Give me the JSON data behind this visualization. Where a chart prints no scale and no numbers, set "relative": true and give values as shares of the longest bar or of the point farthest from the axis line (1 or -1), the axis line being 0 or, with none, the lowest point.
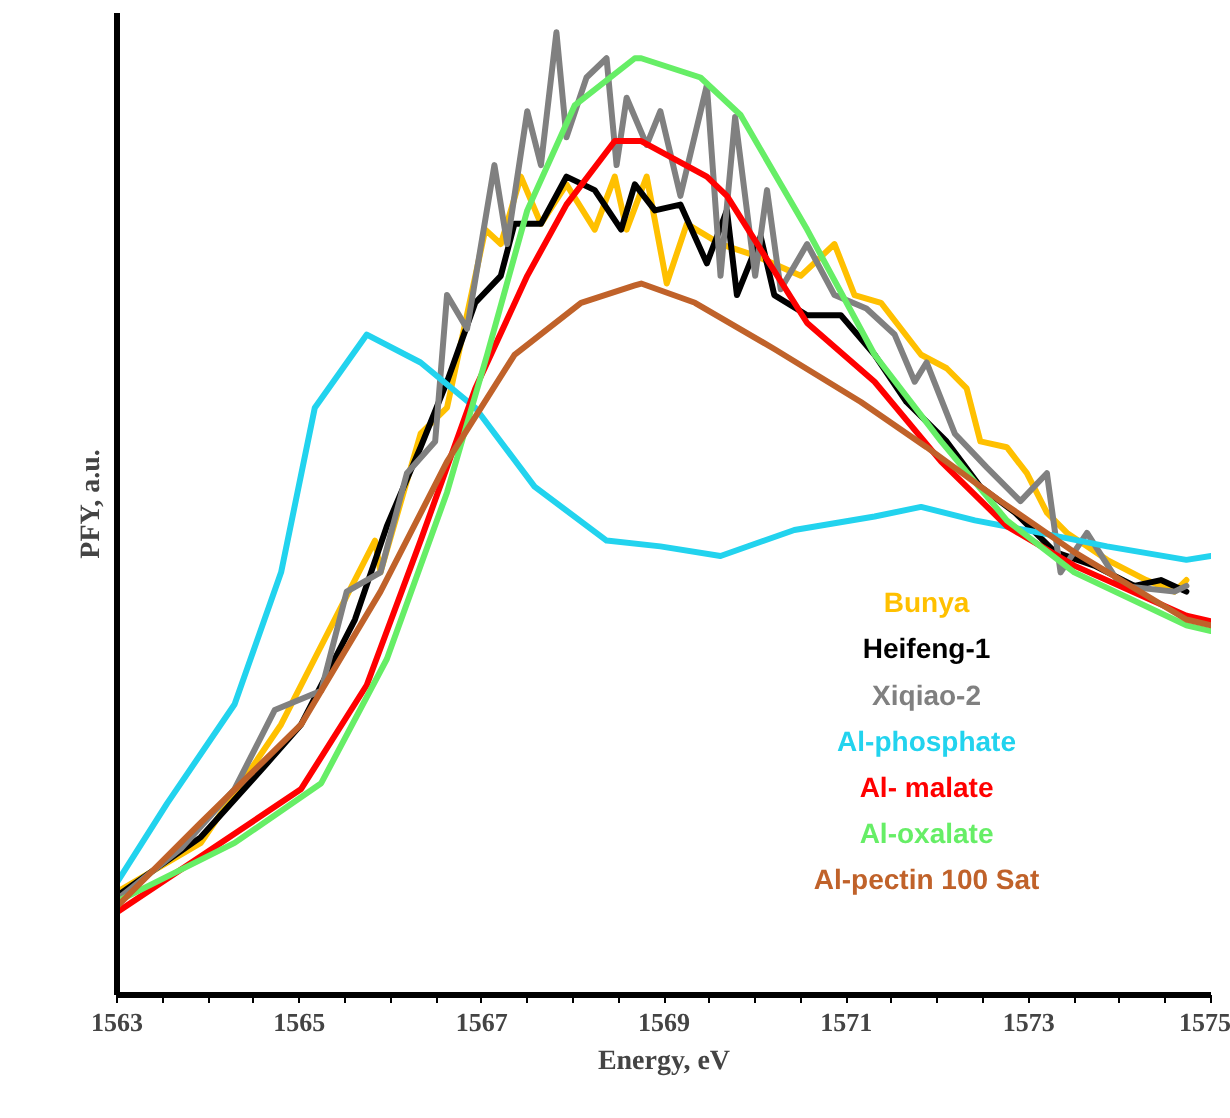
{
  "chart_data": {
    "type": "line",
    "relative": true,
    "xlabel": "Energy, eV",
    "ylabel": "PFY, a.u.",
    "xlim": [
      1563,
      1575
    ],
    "xticks": [
      1563,
      {
        "value": 1563.5,
        "label": null
      },
      {
        "value": 1564,
        "label": null
      },
      {
        "value": 1564.5,
        "label": null
      },
      1565,
      {
        "value": 1565.5,
        "label": null
      },
      {
        "value": 1566,
        "label": null
      },
      {
        "value": 1566.5,
        "label": null
      },
      1567,
      {
        "value": 1567.5,
        "label": null
      },
      {
        "value": 1568,
        "label": null
      },
      {
        "value": 1568.5,
        "label": null
      },
      1569,
      {
        "value": 1569.5,
        "label": null
      },
      {
        "value": 1570,
        "label": null
      },
      {
        "value": 1570.5,
        "label": null
      },
      1571,
      {
        "value": 1571.5,
        "label": null
      },
      {
        "value": 1572,
        "label": null
      },
      {
        "value": 1572.5,
        "label": null
      },
      1573,
      {
        "value": 1573.5,
        "label": null
      },
      {
        "value": 1574,
        "label": null
      },
      {
        "value": 1574.5,
        "label": null
      },
      1575
    ],
    "grid": false,
    "legend": "bottom right",
    "marker": "none",
    "line_style": "solid",
    "series": [
      {
        "name": "Bunya",
        "color": "#ffc000",
        "x": [
          1563,
          1563.92,
          1564.8,
          1565.83,
          1565.89,
          1566.33,
          1566.62,
          1567.04,
          1567.21,
          1567.43,
          1567.65,
          1567.93,
          1568.24,
          1568.46,
          1568.59,
          1568.81,
          1569.03,
          1569.25,
          1569.62,
          1570.0,
          1570.5,
          1570.87,
          1571.09,
          1571.38,
          1571.82,
          1572.1,
          1572.32,
          1572.47,
          1572.76,
          1572.98,
          1573.2,
          1573.42,
          1573.86,
          1574.29,
          1574.6,
          1574.73
        ],
        "values": [
          0.107,
          0.158,
          0.281,
          0.472,
          0.439,
          0.583,
          0.61,
          0.795,
          0.78,
          0.85,
          0.801,
          0.842,
          0.795,
          0.85,
          0.795,
          0.85,
          0.739,
          0.801,
          0.78,
          0.768,
          0.747,
          0.78,
          0.727,
          0.719,
          0.665,
          0.651,
          0.63,
          0.575,
          0.569,
          0.542,
          0.501,
          0.48,
          0.452,
          0.431,
          0.419,
          0.431
        ]
      },
      {
        "name": "Heifeng-1",
        "color": "#000000",
        "x": [
          1563,
          1563.92,
          1564.64,
          1565.02,
          1565.61,
          1565.96,
          1566.33,
          1566.62,
          1566.93,
          1567.21,
          1567.36,
          1567.65,
          1567.93,
          1568.24,
          1568.53,
          1568.68,
          1568.9,
          1569.18,
          1569.47,
          1569.69,
          1569.8,
          1570.06,
          1570.21,
          1570.57,
          1570.94,
          1571.31,
          1571.66,
          1572.1,
          1572.47,
          1572.85,
          1573.29,
          1573.72,
          1574.16,
          1574.45,
          1574.73
        ],
        "values": [
          0.103,
          0.164,
          0.24,
          0.281,
          0.39,
          0.487,
          0.569,
          0.637,
          0.719,
          0.747,
          0.801,
          0.801,
          0.85,
          0.836,
          0.795,
          0.842,
          0.815,
          0.821,
          0.76,
          0.815,
          0.727,
          0.788,
          0.727,
          0.706,
          0.706,
          0.665,
          0.616,
          0.575,
          0.528,
          0.501,
          0.46,
          0.446,
          0.425,
          0.431,
          0.419
        ]
      },
      {
        "name": "Xiqiao-2",
        "color": "#808080",
        "x": [
          1563,
          1563.7,
          1564.29,
          1564.73,
          1565.24,
          1565.52,
          1565.89,
          1566.18,
          1566.49,
          1566.62,
          1566.84,
          1567.14,
          1567.28,
          1567.5,
          1567.65,
          1567.82,
          1567.93,
          1568.15,
          1568.37,
          1568.48,
          1568.59,
          1568.81,
          1568.96,
          1569.18,
          1569.47,
          1569.62,
          1569.78,
          1570.0,
          1570.13,
          1570.28,
          1570.57,
          1570.87,
          1571.22,
          1571.53,
          1571.75,
          1571.88,
          1572.19,
          1572.54,
          1572.91,
          1573.2,
          1573.35,
          1573.64,
          1574.01,
          1574.6,
          1574.73
        ],
        "values": [
          0.099,
          0.152,
          0.214,
          0.296,
          0.316,
          0.419,
          0.439,
          0.542,
          0.575,
          0.727,
          0.692,
          0.862,
          0.78,
          0.918,
          0.862,
          1,
          0.891,
          0.953,
          0.973,
          0.862,
          0.932,
          0.883,
          0.918,
          0.83,
          0.945,
          0.747,
          0.912,
          0.747,
          0.836,
          0.733,
          0.78,
          0.727,
          0.713,
          0.686,
          0.637,
          0.657,
          0.583,
          0.548,
          0.513,
          0.542,
          0.439,
          0.48,
          0.425,
          0.419,
          0.425
        ]
      },
      {
        "name": "Al-phosphate",
        "color": "#22d3ee",
        "x": [
          1563,
          1563.55,
          1564.29,
          1564.8,
          1565.17,
          1565.74,
          1566.33,
          1566.93,
          1567.58,
          1568.37,
          1568.96,
          1569.62,
          1570.43,
          1571.31,
          1571.82,
          1572.41,
          1573.13,
          1573.86,
          1574.73,
          1575
        ],
        "values": [
          0.117,
          0.199,
          0.302,
          0.439,
          0.61,
          0.686,
          0.657,
          0.61,
          0.528,
          0.472,
          0.466,
          0.456,
          0.483,
          0.497,
          0.507,
          0.493,
          0.48,
          0.466,
          0.452,
          0.456
        ]
      },
      {
        "name": "Al- malate",
        "color": "#ff0000",
        "x": [
          1563,
          1563.92,
          1565.02,
          1565.74,
          1566.33,
          1566.93,
          1567.5,
          1567.93,
          1568.46,
          1568.75,
          1569.47,
          1569.69,
          1570.57,
          1571.31,
          1572.04,
          1572.76,
          1573.5,
          1574.73,
          1575
        ],
        "values": [
          0.086,
          0.144,
          0.214,
          0.322,
          0.472,
          0.63,
          0.747,
          0.821,
          0.887,
          0.887,
          0.85,
          0.83,
          0.698,
          0.637,
          0.554,
          0.487,
          0.446,
          0.394,
          0.388
        ]
      },
      {
        "name": "Al-oxalate",
        "color": "#66ee66",
        "x": [
          1563,
          1564.29,
          1565.24,
          1565.96,
          1566.62,
          1567.06,
          1567.5,
          1568.02,
          1568.68,
          1568.75,
          1569.4,
          1569.84,
          1570.57,
          1571.31,
          1572.04,
          1572.76,
          1573.5,
          1574.73,
          1575
        ],
        "values": [
          0.097,
          0.158,
          0.22,
          0.349,
          0.522,
          0.665,
          0.815,
          0.924,
          0.973,
          0.973,
          0.953,
          0.914,
          0.795,
          0.665,
          0.575,
          0.493,
          0.439,
          0.384,
          0.378
        ]
      },
      {
        "name": "Al-pectin 100 Sat",
        "color": "#c0622a",
        "x": [
          1563,
          1563.92,
          1565.02,
          1565.89,
          1566.62,
          1567.36,
          1568.09,
          1568.68,
          1568.75,
          1569.34,
          1570.21,
          1571.16,
          1571.88,
          1572.69,
          1573.5,
          1574.73,
          1575
        ],
        "values": [
          0.092,
          0.179,
          0.281,
          0.419,
          0.554,
          0.665,
          0.719,
          0.737,
          0.739,
          0.719,
          0.671,
          0.616,
          0.569,
          0.513,
          0.46,
          0.39,
          0.384
        ]
      }
    ]
  }
}
